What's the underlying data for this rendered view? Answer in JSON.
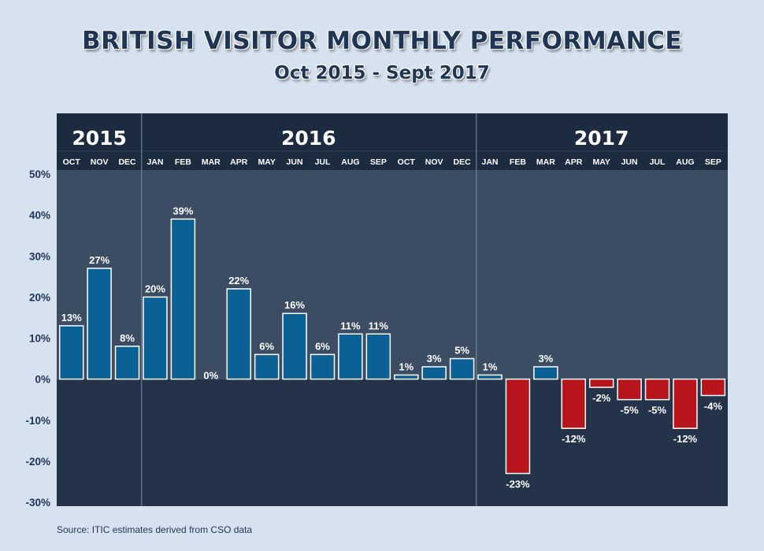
{
  "title": "BRITISH VISITOR MONTHLY PERFORMANCE",
  "subtitle": "Oct 2015 - Sept 2017",
  "source": "Source: ITIC estimates derived from CSO data",
  "colors": {
    "background": "#d6e2ef",
    "positive_bar": "#0b6196",
    "negative_bar": "#b8141c",
    "plot_upper": "#3b4c63",
    "plot_lower": "#243349",
    "header": "#1c2b40"
  },
  "chart_data": {
    "type": "bar",
    "title": "BRITISH VISITOR MONTHLY PERFORMANCE",
    "subtitle": "Oct 2015 - Sept 2017",
    "ylim": [
      -30,
      50
    ],
    "yticks": [
      "50%",
      "40%",
      "30%",
      "20%",
      "10%",
      "0%",
      "-10%",
      "-20%",
      "-30%"
    ],
    "ytick_values": [
      50,
      40,
      30,
      20,
      10,
      0,
      -10,
      -20,
      -30
    ],
    "years": [
      {
        "label": "2015",
        "months": 3
      },
      {
        "label": "2016",
        "months": 12
      },
      {
        "label": "2017",
        "months": 9
      }
    ],
    "categories": [
      "OCT",
      "NOV",
      "DEC",
      "JAN",
      "FEB",
      "MAR",
      "APR",
      "MAY",
      "JUN",
      "JUL",
      "AUG",
      "SEP",
      "OCT",
      "NOV",
      "DEC",
      "JAN",
      "FEB",
      "MAR",
      "APR",
      "MAY",
      "JUN",
      "JUL",
      "AUG",
      "SEP"
    ],
    "values": [
      13,
      27,
      8,
      20,
      39,
      0,
      22,
      6,
      16,
      6,
      11,
      11,
      1,
      3,
      5,
      1,
      -23,
      3,
      -12,
      -2,
      -5,
      -5,
      -12,
      -4
    ],
    "value_labels": [
      "13%",
      "27%",
      "8%",
      "20%",
      "39%",
      "0%",
      "22%",
      "6%",
      "16%",
      "6%",
      "11%",
      "11%",
      "1%",
      "3%",
      "5%",
      "1%",
      "-23%",
      "3%",
      "-12%",
      "-2%",
      "-5%",
      "-5%",
      "-12%",
      "-4%"
    ],
    "grid": false,
    "legend": "none"
  }
}
